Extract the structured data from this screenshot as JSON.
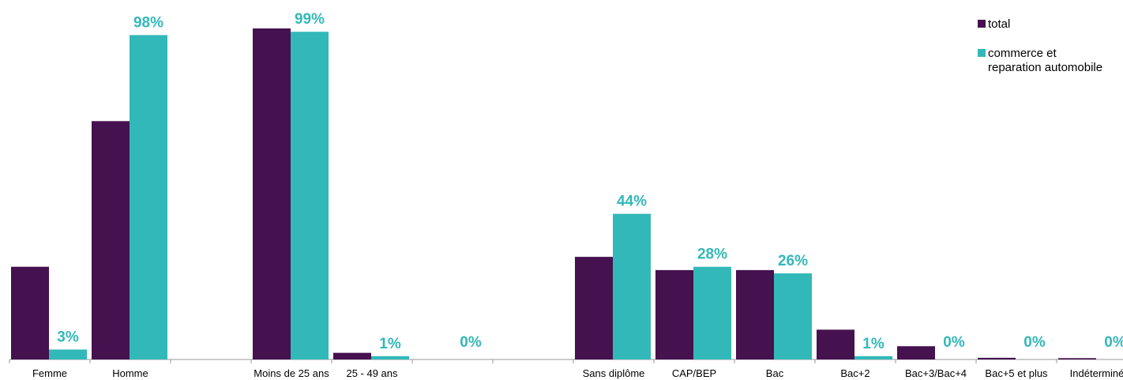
{
  "chart_data": {
    "type": "bar",
    "categories": [
      "Femme",
      "Homme",
      "",
      "Moins de 25 ans",
      "25 - 49 ans",
      "",
      "",
      "Sans diplôme",
      "CAP/BEP",
      "Bac",
      "Bac+2",
      "Bac+3/Bac+4",
      "Bac+5 et plus",
      "Indéterminé"
    ],
    "series": [
      {
        "name": "total",
        "color": "#45114f",
        "values": [
          28,
          72,
          0,
          100,
          2,
          0,
          0,
          31,
          27,
          27,
          9,
          4,
          0.5,
          0.4
        ],
        "labels": [
          "",
          "",
          "",
          "",
          "",
          "",
          "",
          "",
          "",
          "",
          "",
          "",
          "",
          ""
        ]
      },
      {
        "name": "commerce et reparation automobile",
        "color": "#33b8b9",
        "values": [
          3,
          98,
          0,
          99,
          1,
          0,
          0,
          44,
          28,
          26,
          1,
          0,
          0,
          0
        ],
        "labels": [
          "3%",
          "98%",
          "",
          "99%",
          "1%",
          "0%",
          "",
          "44%",
          "28%",
          "26%",
          "1%",
          "0%",
          "0%",
          "0%"
        ]
      }
    ],
    "legend": {
      "position": "top-right",
      "items": [
        {
          "label": "total",
          "color": "#45114f"
        },
        {
          "label": "commerce et",
          "label2": "reparation automobile",
          "color": "#33b8b9"
        }
      ]
    },
    "ylim": [
      0,
      100
    ],
    "grid": false
  }
}
